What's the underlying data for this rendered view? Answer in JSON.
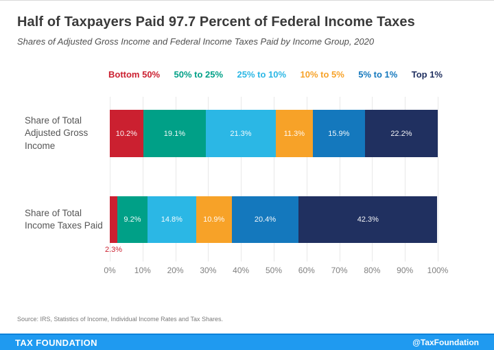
{
  "header": {
    "title": "Half of Taxpayers Paid 97.7 Percent of Federal Income Taxes",
    "subtitle": "Shares of Adjusted Gross Income and Federal Income Taxes Paid by Income Group, 2020"
  },
  "legend": {
    "items": [
      {
        "label": "Bottom 50%",
        "color": "#cb2030"
      },
      {
        "label": "50% to 25%",
        "color": "#00a087"
      },
      {
        "label": "25% to 10%",
        "color": "#2bb7e5"
      },
      {
        "label": "10% to 5%",
        "color": "#f7a228"
      },
      {
        "label": "5% to 1%",
        "color": "#1478bd"
      },
      {
        "label": "Top 1%",
        "color": "#203060"
      }
    ]
  },
  "chart_data": {
    "type": "bar",
    "stacked": true,
    "orientation": "horizontal",
    "grid": true,
    "categories": [
      "Share of Total Adjusted Gross Income",
      "Share of Total Income Taxes Paid"
    ],
    "series": [
      {
        "name": "Bottom 50%",
        "color": "#cb2030",
        "values": [
          10.2,
          2.3
        ]
      },
      {
        "name": "50% to 25%",
        "color": "#00a087",
        "values": [
          19.1,
          9.2
        ]
      },
      {
        "name": "25% to 10%",
        "color": "#2bb7e5",
        "values": [
          21.3,
          14.8
        ]
      },
      {
        "name": "10% to 5%",
        "color": "#f7a228",
        "values": [
          11.3,
          10.9
        ]
      },
      {
        "name": "5% to 1%",
        "color": "#1478bd",
        "values": [
          15.9,
          20.4
        ]
      },
      {
        "name": "Top 1%",
        "color": "#203060",
        "values": [
          22.2,
          42.3
        ]
      }
    ],
    "value_labels": [
      [
        "10.2%",
        "19.1%",
        "21.3%",
        "11.3%",
        "15.9%",
        "22.2%"
      ],
      [
        "2.3%",
        "9.2%",
        "14.8%",
        "10.9%",
        "20.4%",
        "42.3%"
      ]
    ],
    "outside_labels": [
      {
        "row": 1,
        "series_index": 0,
        "text": "2.3%",
        "color": "#cb2030"
      }
    ],
    "min_inside_label_value": 4,
    "x_ticks": [
      "0%",
      "10%",
      "20%",
      "30%",
      "40%",
      "50%",
      "60%",
      "70%",
      "80%",
      "90%",
      "100%"
    ],
    "xlim": [
      0,
      100
    ],
    "xlabel": "",
    "ylabel": ""
  },
  "source": "Source: IRS, Statistics of Income, Individual Income Rates and Tax Shares.",
  "footer": {
    "brand": "TAX FOUNDATION",
    "handle": "@TaxFoundation",
    "background": "#1f9af0"
  }
}
